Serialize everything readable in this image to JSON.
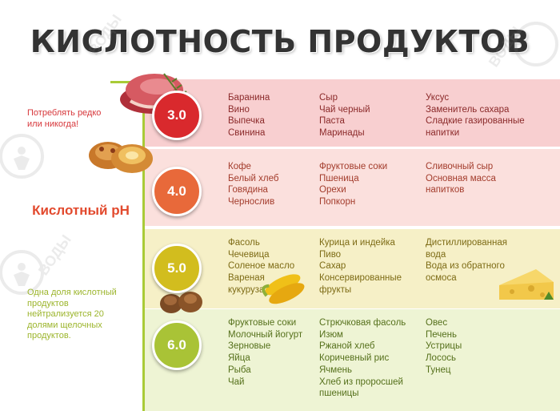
{
  "title": "КИСЛОТНОСТЬ ПРОДУКТОВ",
  "side": {
    "note_top": "Потреблять редко или никогда!",
    "ph_label": "Кислотный pH",
    "note_bottom": "Одна доля кислотный продуктов нейтрализуется 20 долями щелочных продуктов."
  },
  "levels": [
    {
      "ph": "3.0",
      "color": "#d9292d",
      "columns": [
        "Баранина\nВино\nВыпечка\nСвинина",
        "Сыр\nЧай черный\nПаста\nМаринады",
        "Уксус\nЗаменитель сахара\nСладкие газированные\nнапитки"
      ]
    },
    {
      "ph": "4.0",
      "color": "#e8693a",
      "columns": [
        "Кофе\nБелый хлеб\nГовядина\nЧернослив",
        "Фруктовые соки\nПшеница\nОрехи\nПопкорн",
        "Сливочный сыр\nОсновная масса\nнапитков"
      ]
    },
    {
      "ph": "5.0",
      "color": "#d2bd1e",
      "columns": [
        "Фасоль\nЧечевица\nСоленое масло\nВареная\nкукуруза",
        "Курица и индейка\nПиво\nСахар\nКонсервированные\nфрукты",
        "Дистиллированная\nвода\nВода из обратного\nосмоса"
      ]
    },
    {
      "ph": "6.0",
      "color": "#a9c336",
      "columns": [
        "Фруктовые соки\nМолочный йогурт\nЗерновые\nЯйца\nРыба\nЧай",
        "Стрючковая фасоль\nИзюм\nРжаной хлеб\nКоричевный рис\nЯчмень\nХлеб из проросшей\nпшеницы",
        "Овес\nПечень\nУстрицы\nЛосось\nТунец"
      ]
    }
  ],
  "watermark_text": "ВОДЫ ЗДОРОВЬЯ"
}
